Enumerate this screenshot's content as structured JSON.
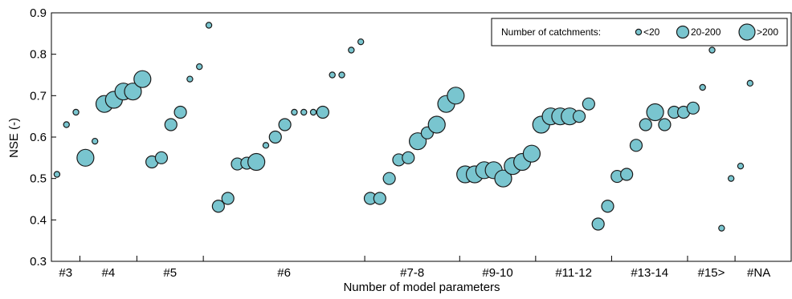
{
  "chart_data": {
    "type": "scatter",
    "title": "",
    "xlabel": "Number of model parameters",
    "ylabel": "NSE (-)",
    "ylim": [
      0.3,
      0.9
    ],
    "yticks": [
      "0.3",
      "0.4",
      "0.5",
      "0.6",
      "0.7",
      "0.8",
      "0.9"
    ],
    "grid": false,
    "legend_placement": "top-right",
    "marker_color": "#79c5cf",
    "marker_edge": "#1a1a1a",
    "x_count": 78,
    "groups": [
      {
        "label": "#3",
        "start": 1,
        "end": 3
      },
      {
        "label": "#4",
        "start": 4,
        "end": 9
      },
      {
        "label": "#5",
        "start": 10,
        "end": 16
      },
      {
        "label": "#6",
        "start": 17,
        "end": 33
      },
      {
        "label": "#7-8",
        "start": 34,
        "end": 43
      },
      {
        "label": "#9-10",
        "start": 44,
        "end": 51
      },
      {
        "label": "#11-12",
        "start": 52,
        "end": 59
      },
      {
        "label": "#13-14",
        "start": 60,
        "end": 67
      },
      {
        "label": "#15>",
        "start": 68,
        "end": 72
      },
      {
        "label": "#NA",
        "start": 73,
        "end": 77
      }
    ],
    "legend": {
      "title": "Number of catchments:",
      "entries": [
        {
          "label": "<20",
          "size": "small"
        },
        {
          "label": "20-200",
          "size": "medium"
        },
        {
          "label": ">200",
          "size": "large"
        }
      ]
    },
    "points": [
      {
        "x": 1,
        "y": 0.51,
        "size": "small"
      },
      {
        "x": 2,
        "y": 0.63,
        "size": "small"
      },
      {
        "x": 3,
        "y": 0.66,
        "size": "small"
      },
      {
        "x": 4,
        "y": 0.55,
        "size": "large"
      },
      {
        "x": 5,
        "y": 0.59,
        "size": "small"
      },
      {
        "x": 6,
        "y": 0.68,
        "size": "large"
      },
      {
        "x": 7,
        "y": 0.69,
        "size": "large"
      },
      {
        "x": 8,
        "y": 0.71,
        "size": "large"
      },
      {
        "x": 9,
        "y": 0.71,
        "size": "large"
      },
      {
        "x": 10,
        "y": 0.74,
        "size": "large"
      },
      {
        "x": 11,
        "y": 0.54,
        "size": "medium"
      },
      {
        "x": 12,
        "y": 0.55,
        "size": "medium"
      },
      {
        "x": 13,
        "y": 0.63,
        "size": "medium"
      },
      {
        "x": 14,
        "y": 0.66,
        "size": "medium"
      },
      {
        "x": 15,
        "y": 0.74,
        "size": "small"
      },
      {
        "x": 16,
        "y": 0.77,
        "size": "small"
      },
      {
        "x": 17,
        "y": 0.87,
        "size": "small"
      },
      {
        "x": 18,
        "y": 0.433,
        "size": "medium"
      },
      {
        "x": 19,
        "y": 0.452,
        "size": "medium"
      },
      {
        "x": 20,
        "y": 0.535,
        "size": "medium"
      },
      {
        "x": 21,
        "y": 0.537,
        "size": "medium"
      },
      {
        "x": 22,
        "y": 0.54,
        "size": "large"
      },
      {
        "x": 23,
        "y": 0.58,
        "size": "small"
      },
      {
        "x": 24,
        "y": 0.6,
        "size": "medium"
      },
      {
        "x": 25,
        "y": 0.63,
        "size": "medium"
      },
      {
        "x": 26,
        "y": 0.66,
        "size": "small"
      },
      {
        "x": 27,
        "y": 0.66,
        "size": "small"
      },
      {
        "x": 28,
        "y": 0.66,
        "size": "small"
      },
      {
        "x": 29,
        "y": 0.66,
        "size": "medium"
      },
      {
        "x": 30,
        "y": 0.75,
        "size": "small"
      },
      {
        "x": 31,
        "y": 0.75,
        "size": "small"
      },
      {
        "x": 32,
        "y": 0.81,
        "size": "small"
      },
      {
        "x": 33,
        "y": 0.83,
        "size": "small"
      },
      {
        "x": 34,
        "y": 0.452,
        "size": "medium"
      },
      {
        "x": 35,
        "y": 0.452,
        "size": "medium"
      },
      {
        "x": 36,
        "y": 0.5,
        "size": "medium"
      },
      {
        "x": 37,
        "y": 0.545,
        "size": "medium"
      },
      {
        "x": 38,
        "y": 0.55,
        "size": "medium"
      },
      {
        "x": 39,
        "y": 0.59,
        "size": "large"
      },
      {
        "x": 40,
        "y": 0.61,
        "size": "medium"
      },
      {
        "x": 41,
        "y": 0.63,
        "size": "large"
      },
      {
        "x": 42,
        "y": 0.68,
        "size": "large"
      },
      {
        "x": 43,
        "y": 0.7,
        "size": "large"
      },
      {
        "x": 44,
        "y": 0.51,
        "size": "large"
      },
      {
        "x": 45,
        "y": 0.51,
        "size": "large"
      },
      {
        "x": 46,
        "y": 0.52,
        "size": "large"
      },
      {
        "x": 47,
        "y": 0.52,
        "size": "large"
      },
      {
        "x": 48,
        "y": 0.5,
        "size": "large"
      },
      {
        "x": 49,
        "y": 0.53,
        "size": "large"
      },
      {
        "x": 50,
        "y": 0.54,
        "size": "large"
      },
      {
        "x": 51,
        "y": 0.56,
        "size": "large"
      },
      {
        "x": 52,
        "y": 0.63,
        "size": "large"
      },
      {
        "x": 53,
        "y": 0.65,
        "size": "large"
      },
      {
        "x": 54,
        "y": 0.65,
        "size": "large"
      },
      {
        "x": 55,
        "y": 0.65,
        "size": "large"
      },
      {
        "x": 56,
        "y": 0.65,
        "size": "medium"
      },
      {
        "x": 57,
        "y": 0.68,
        "size": "medium"
      },
      {
        "x": 58,
        "y": 0.39,
        "size": "medium"
      },
      {
        "x": 59,
        "y": 0.433,
        "size": "medium"
      },
      {
        "x": 60,
        "y": 0.505,
        "size": "medium"
      },
      {
        "x": 61,
        "y": 0.51,
        "size": "medium"
      },
      {
        "x": 62,
        "y": 0.58,
        "size": "medium"
      },
      {
        "x": 63,
        "y": 0.63,
        "size": "medium"
      },
      {
        "x": 64,
        "y": 0.66,
        "size": "large"
      },
      {
        "x": 65,
        "y": 0.63,
        "size": "medium"
      },
      {
        "x": 66,
        "y": 0.66,
        "size": "medium"
      },
      {
        "x": 67,
        "y": 0.66,
        "size": "medium"
      },
      {
        "x": 68,
        "y": 0.67,
        "size": "medium"
      },
      {
        "x": 69,
        "y": 0.72,
        "size": "small"
      },
      {
        "x": 70,
        "y": 0.81,
        "size": "small"
      },
      {
        "x": 71,
        "y": 0.38,
        "size": "small"
      },
      {
        "x": 72,
        "y": 0.5,
        "size": "small"
      },
      {
        "x": 73,
        "y": 0.53,
        "size": "small"
      },
      {
        "x": 74,
        "y": 0.73,
        "size": "small"
      }
    ]
  }
}
